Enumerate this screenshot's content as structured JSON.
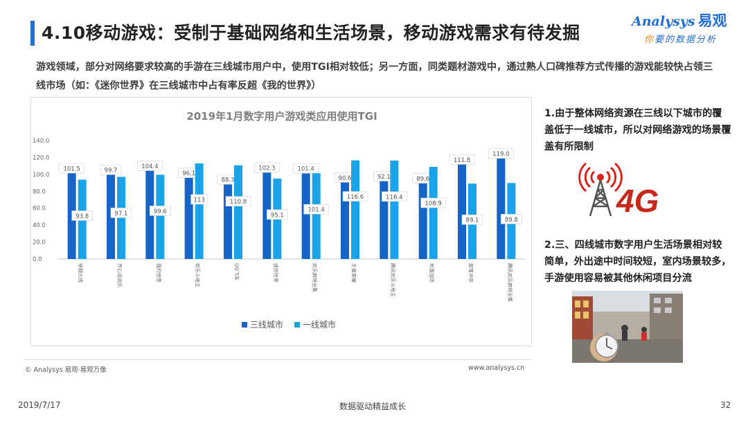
{
  "slide": {
    "title": "4.10移动游戏：受制于基础网络和生活场景，移动游戏需求有待发掘",
    "intro": "游戏领域，部分对网络要求较高的手游在三线城市用户中，使用TGI相对较低；另一方面，同类题材游戏中，通过熟人口碑推荐方式传播的游戏能较快占领三线市场（如：《迷你世界》在三线城市中占有率反超《我的世界》）",
    "side_note_1": "1.由于整体网络资源在三线以下城市的覆盖低于一线城市，所以对网络游戏的场景覆盖有所限制",
    "side_note_2": "2.三、四线城市数字用户生活场景相对较简单，外出途中时间较短，室内场景较多，手游使用容易被其他休闲项目分流",
    "image_4g_text": "4G",
    "footer_left": "© Analysys 易观·易观万像",
    "footer_right": "www.analysys.cn",
    "date": "2019/7/17",
    "center_slogan": "数据驱动精益成长",
    "page_number": "32"
  },
  "logo": {
    "brand_en": "Analysys",
    "brand_cn": "易观",
    "slogan_part1": "你",
    "slogan_part2": "要的数据分析"
  },
  "colors": {
    "accent": "#1f6fd6",
    "series_tier3": "#1565c9",
    "series_tier1": "#1aa3e8"
  },
  "chart_data": {
    "type": "bar",
    "title": "2019年1月数字用户游戏类应用使用TGI",
    "categories": [
      "穿越火线",
      "开心消消乐",
      "我的世界",
      "欢乐斗地主",
      "QQ飞车",
      "迷你世界",
      "欢乐麻将全集",
      "王者荣耀",
      "腾讯欢乐斗地主",
      "刺激战场",
      "部落冲突",
      "腾讯欢乐麻将全集"
    ],
    "series": [
      {
        "name": "三线城市",
        "values": [
          101.5,
          99.7,
          104.4,
          96.1,
          88.3,
          102.3,
          101.4,
          90.6,
          92.1,
          89.6,
          111.8,
          119.0
        ]
      },
      {
        "name": "一线城市",
        "values": [
          93.8,
          97.1,
          99.6,
          113,
          110.8,
          95.1,
          101.4,
          116.6,
          116.4,
          108.9,
          89.1,
          89.8
        ]
      }
    ],
    "value_labels": {
      "三线城市": [
        "101.5",
        "99.7",
        "104.4",
        "96.1",
        "88.3",
        "102.3",
        "101.4",
        "90.6",
        "92.1",
        "89.6",
        "111.8",
        "119.0"
      ],
      "一线城市": [
        "93.8",
        "97.1",
        "99.6",
        "113",
        "110.8",
        "95.1",
        "101.4",
        "116.6",
        "116.4",
        "108.9",
        "89.1",
        "89.8"
      ]
    },
    "ylim": [
      0,
      140
    ],
    "yticks": [
      "0.0",
      "20.0",
      "40.0",
      "60.0",
      "80.0",
      "100.0",
      "120.0",
      "140.0"
    ],
    "grid": false,
    "legend_position": "bottom"
  }
}
